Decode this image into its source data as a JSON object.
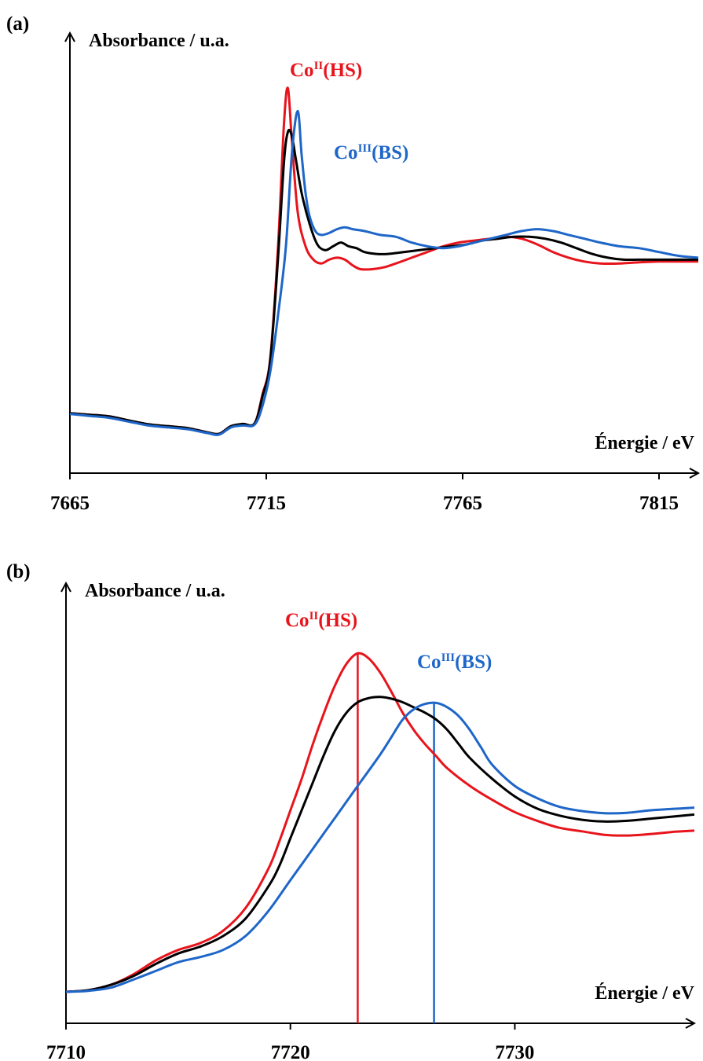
{
  "chart_data": [
    {
      "panel": "(a)",
      "type": "line",
      "ylabel": "Absorbance / u.a.",
      "xlabel": "Énergie / eV",
      "xlim": [
        7665,
        7825
      ],
      "ylim": [
        0,
        1
      ],
      "xticks": [
        "7665",
        "7715",
        "7765",
        "7815"
      ],
      "annotations": [
        {
          "base": "Co",
          "sup": "II",
          "suffix": "(HS)",
          "color": "#e8141c"
        },
        {
          "base": "Co",
          "sup": "III",
          "suffix": "(BS)",
          "color": "#1e66c8"
        }
      ],
      "series": [
        {
          "color": "#e8141c",
          "x": [
            7665,
            7670,
            7675,
            7680,
            7685,
            7690,
            7695,
            7700,
            7703,
            7706,
            7709,
            7712,
            7714,
            7716,
            7718,
            7719.5,
            7720.5,
            7721.5,
            7723,
            7725,
            7727,
            7729,
            7731,
            7733,
            7735,
            7737,
            7739,
            7742,
            7745,
            7748,
            7752,
            7756,
            7760,
            7764,
            7768,
            7772,
            7776,
            7780,
            7784,
            7788,
            7792,
            7796,
            7800,
            7805,
            7810,
            7815,
            7820,
            7825
          ],
          "y": [
            0.122,
            0.118,
            0.114,
            0.103,
            0.093,
            0.088,
            0.083,
            0.072,
            0.068,
            0.088,
            0.094,
            0.095,
            0.17,
            0.265,
            0.56,
            0.88,
            0.975,
            0.84,
            0.65,
            0.56,
            0.525,
            0.515,
            0.525,
            0.53,
            0.525,
            0.51,
            0.5,
            0.5,
            0.505,
            0.515,
            0.53,
            0.545,
            0.56,
            0.57,
            0.575,
            0.58,
            0.585,
            0.58,
            0.565,
            0.545,
            0.53,
            0.52,
            0.515,
            0.515,
            0.518,
            0.52,
            0.52,
            0.52
          ]
        },
        {
          "color": "#000000",
          "x": [
            7665,
            7670,
            7675,
            7680,
            7685,
            7690,
            7695,
            7700,
            7703,
            7706,
            7709,
            7712,
            7714,
            7716,
            7718,
            7719.5,
            7720.5,
            7721.5,
            7722.5,
            7724,
            7726,
            7728,
            7730,
            7732,
            7734,
            7736,
            7738,
            7740,
            7743,
            7746,
            7750,
            7754,
            7758,
            7762,
            7766,
            7770,
            7774,
            7778,
            7782,
            7786,
            7790,
            7794,
            7798,
            7802,
            7806,
            7810,
            7815,
            7820,
            7825
          ],
          "y": [
            0.122,
            0.118,
            0.114,
            0.103,
            0.093,
            0.088,
            0.083,
            0.072,
            0.068,
            0.088,
            0.094,
            0.095,
            0.165,
            0.26,
            0.53,
            0.78,
            0.86,
            0.85,
            0.79,
            0.7,
            0.62,
            0.565,
            0.55,
            0.56,
            0.57,
            0.56,
            0.555,
            0.545,
            0.54,
            0.54,
            0.545,
            0.55,
            0.555,
            0.56,
            0.565,
            0.575,
            0.58,
            0.585,
            0.585,
            0.58,
            0.57,
            0.555,
            0.54,
            0.53,
            0.525,
            0.525,
            0.525,
            0.525,
            0.525
          ]
        },
        {
          "color": "#1e66c8",
          "x": [
            7665,
            7670,
            7675,
            7680,
            7685,
            7690,
            7695,
            7700,
            7703,
            7706,
            7709,
            7712,
            7714,
            7716,
            7718,
            7720,
            7721.5,
            7723,
            7724,
            7725,
            7726,
            7727.5,
            7729,
            7731,
            7733,
            7735,
            7737,
            7740,
            7744,
            7748,
            7752,
            7756,
            7760,
            7764,
            7768,
            7772,
            7776,
            7780,
            7784,
            7788,
            7792,
            7796,
            7800,
            7805,
            7810,
            7815,
            7820,
            7825
          ],
          "y": [
            0.12,
            0.115,
            0.11,
            0.1,
            0.09,
            0.085,
            0.08,
            0.07,
            0.066,
            0.085,
            0.09,
            0.092,
            0.14,
            0.23,
            0.38,
            0.56,
            0.8,
            0.915,
            0.8,
            0.7,
            0.64,
            0.6,
            0.59,
            0.595,
            0.605,
            0.61,
            0.605,
            0.6,
            0.59,
            0.585,
            0.57,
            0.56,
            0.555,
            0.56,
            0.57,
            0.58,
            0.59,
            0.6,
            0.605,
            0.6,
            0.59,
            0.58,
            0.57,
            0.56,
            0.555,
            0.545,
            0.535,
            0.53
          ]
        }
      ]
    },
    {
      "panel": "(b)",
      "type": "line",
      "ylabel": "Absorbance / u.a.",
      "xlabel": "Énergie / eV",
      "xlim": [
        7710,
        7738
      ],
      "ylim": [
        0,
        1
      ],
      "xticks": [
        "7710",
        "7720",
        "7730"
      ],
      "annotations": [
        {
          "base": "Co",
          "sup": "II",
          "suffix": "(HS)",
          "color": "#e8141c"
        },
        {
          "base": "Co",
          "sup": "III",
          "suffix": "(BS)",
          "color": "#1e66c8"
        }
      ],
      "vlines": [
        {
          "x": 7723.0,
          "color": "#e8141c"
        },
        {
          "x": 7726.4,
          "color": "#1e66c8"
        }
      ],
      "series": [
        {
          "color": "#e8141c",
          "x": [
            7710,
            7711,
            7712,
            7713,
            7714,
            7715,
            7716,
            7717,
            7718,
            7719,
            7719.5,
            7720,
            7720.5,
            7721,
            7721.5,
            7722,
            7722.5,
            7723,
            7723.5,
            7724,
            7724.5,
            7725,
            7725.5,
            7726,
            7726.5,
            7727,
            7728,
            7729,
            7730,
            7731,
            7732,
            7733,
            7734,
            7735,
            7736,
            7737,
            7738
          ],
          "y": [
            0.0,
            0.005,
            0.02,
            0.05,
            0.09,
            0.12,
            0.14,
            0.175,
            0.24,
            0.35,
            0.43,
            0.52,
            0.61,
            0.71,
            0.8,
            0.88,
            0.94,
            0.97,
            0.955,
            0.915,
            0.86,
            0.8,
            0.75,
            0.71,
            0.675,
            0.64,
            0.59,
            0.55,
            0.515,
            0.49,
            0.47,
            0.46,
            0.45,
            0.448,
            0.452,
            0.458,
            0.462
          ]
        },
        {
          "color": "#000000",
          "x": [
            7710,
            7711,
            7712,
            7713,
            7714,
            7715,
            7716,
            7717,
            7718,
            7719,
            7719.5,
            7720,
            7720.5,
            7721,
            7721.5,
            7722,
            7722.5,
            7723,
            7723.5,
            7724,
            7724.5,
            7725,
            7725.5,
            7726,
            7726.5,
            7727,
            7727.5,
            7728,
            7729,
            7730,
            7731,
            7732,
            7733,
            7734,
            7735,
            7736,
            7737,
            7738
          ],
          "y": [
            0.0,
            0.005,
            0.02,
            0.045,
            0.08,
            0.11,
            0.13,
            0.16,
            0.21,
            0.3,
            0.36,
            0.44,
            0.52,
            0.6,
            0.68,
            0.75,
            0.8,
            0.83,
            0.842,
            0.845,
            0.84,
            0.83,
            0.815,
            0.8,
            0.78,
            0.75,
            0.71,
            0.67,
            0.61,
            0.56,
            0.525,
            0.505,
            0.493,
            0.488,
            0.49,
            0.496,
            0.502,
            0.508
          ]
        },
        {
          "color": "#1e66c8",
          "x": [
            7710,
            7711,
            7712,
            7713,
            7714,
            7715,
            7716,
            7717,
            7718,
            7719,
            7720,
            7721,
            7722,
            7723,
            7724,
            7724.5,
            7725,
            7725.5,
            7726,
            7726.5,
            7727,
            7727.5,
            7728,
            7728.5,
            7729,
            7730,
            7731,
            7732,
            7733,
            7734,
            7735,
            7736,
            7737,
            7738
          ],
          "y": [
            0.0,
            0.003,
            0.012,
            0.035,
            0.06,
            0.085,
            0.1,
            0.12,
            0.16,
            0.23,
            0.32,
            0.41,
            0.5,
            0.59,
            0.68,
            0.73,
            0.78,
            0.81,
            0.825,
            0.828,
            0.815,
            0.79,
            0.75,
            0.7,
            0.65,
            0.59,
            0.555,
            0.53,
            0.518,
            0.512,
            0.513,
            0.52,
            0.524,
            0.528
          ]
        }
      ]
    }
  ]
}
